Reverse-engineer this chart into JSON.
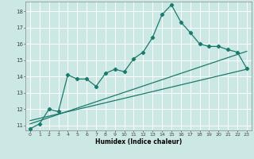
{
  "xlabel": "Humidex (Indice chaleur)",
  "bg_color": "#cce8e5",
  "grid_color": "#ffffff",
  "line_color": "#1a7a6e",
  "xlim": [
    -0.5,
    23.5
  ],
  "ylim": [
    10.7,
    18.6
  ],
  "xticks": [
    0,
    1,
    2,
    3,
    4,
    5,
    6,
    7,
    8,
    9,
    10,
    11,
    12,
    13,
    14,
    15,
    16,
    17,
    18,
    19,
    20,
    21,
    22,
    23
  ],
  "yticks": [
    11,
    12,
    13,
    14,
    15,
    16,
    17,
    18
  ],
  "curve1_x": [
    0,
    1,
    2,
    3,
    4,
    5,
    6,
    7,
    8,
    9,
    10,
    11,
    12,
    13,
    14,
    15,
    16,
    17,
    18,
    19,
    20,
    21,
    22,
    23
  ],
  "curve1_y": [
    10.8,
    11.1,
    12.0,
    11.85,
    14.1,
    13.85,
    13.85,
    13.4,
    14.2,
    14.45,
    14.3,
    15.1,
    15.5,
    16.4,
    17.8,
    18.4,
    17.35,
    16.7,
    16.0,
    15.85,
    15.85,
    15.65,
    15.5,
    14.5
  ],
  "line2_x": [
    0,
    23
  ],
  "line2_y": [
    11.1,
    15.55
  ],
  "line3_x": [
    0,
    23
  ],
  "line3_y": [
    11.3,
    14.45
  ],
  "marker": "D",
  "markersize": 2.2,
  "linewidth": 0.9
}
